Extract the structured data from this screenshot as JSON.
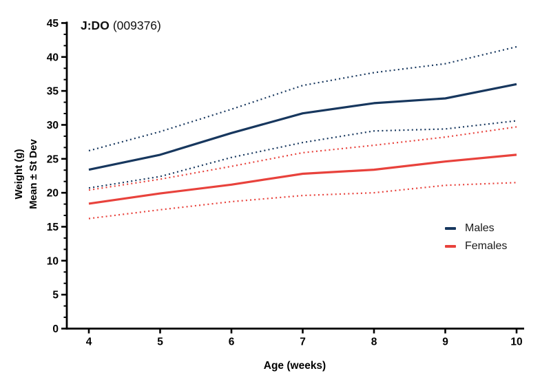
{
  "chart": {
    "title": {
      "strain": "J:DO",
      "stock": "(009376)"
    },
    "y_axis_label_line1": "Weight (g)",
    "y_axis_label_line2": "Mean ± St Dev",
    "x_axis_label": "Age (weeks)",
    "legend": {
      "items": [
        {
          "label": "Males",
          "color": "#17375E"
        },
        {
          "label": "Females",
          "color": "#E8423C"
        }
      ]
    }
  },
  "chart_data": {
    "type": "line",
    "title": "J:DO (009376)",
    "xlabel": "Age (weeks)",
    "ylabel": "Weight (g) Mean ± St Dev",
    "x": [
      4,
      5,
      6,
      7,
      8,
      9,
      10
    ],
    "x_tick_labels": [
      "4",
      "5",
      "6",
      "7",
      "8",
      "9",
      "10"
    ],
    "y_ticks": [
      0,
      5,
      10,
      15,
      20,
      25,
      30,
      35,
      40,
      45
    ],
    "xlim": [
      4,
      10
    ],
    "ylim": [
      0,
      45
    ],
    "y_minor_ticks_per_major": 2,
    "grid": false,
    "legend_position": "right-center",
    "axis_color": "#000000",
    "series": [
      {
        "name": "Males mean",
        "legend": "Males",
        "style": "solid",
        "color": "#17375E",
        "values": [
          23.4,
          25.6,
          28.8,
          31.7,
          33.2,
          33.9,
          36.0
        ]
      },
      {
        "name": "Males mean plus SD",
        "style": "dotted",
        "color": "#17375E",
        "values": [
          26.2,
          29.0,
          32.3,
          35.8,
          37.7,
          39.0,
          41.5
        ]
      },
      {
        "name": "Males mean minus SD",
        "style": "dotted",
        "color": "#17375E",
        "values": [
          20.7,
          22.4,
          25.2,
          27.4,
          29.1,
          29.4,
          30.6
        ]
      },
      {
        "name": "Females mean",
        "legend": "Females",
        "style": "solid",
        "color": "#E8423C",
        "values": [
          18.4,
          19.9,
          21.2,
          22.8,
          23.4,
          24.6,
          25.6
        ]
      },
      {
        "name": "Females mean plus SD",
        "style": "dotted",
        "color": "#E8423C",
        "values": [
          20.4,
          22.0,
          23.9,
          25.9,
          27.0,
          28.2,
          29.7
        ]
      },
      {
        "name": "Females mean minus SD",
        "style": "dotted",
        "color": "#E8423C",
        "values": [
          16.2,
          17.5,
          18.7,
          19.6,
          20.0,
          21.1,
          21.5
        ]
      }
    ]
  }
}
